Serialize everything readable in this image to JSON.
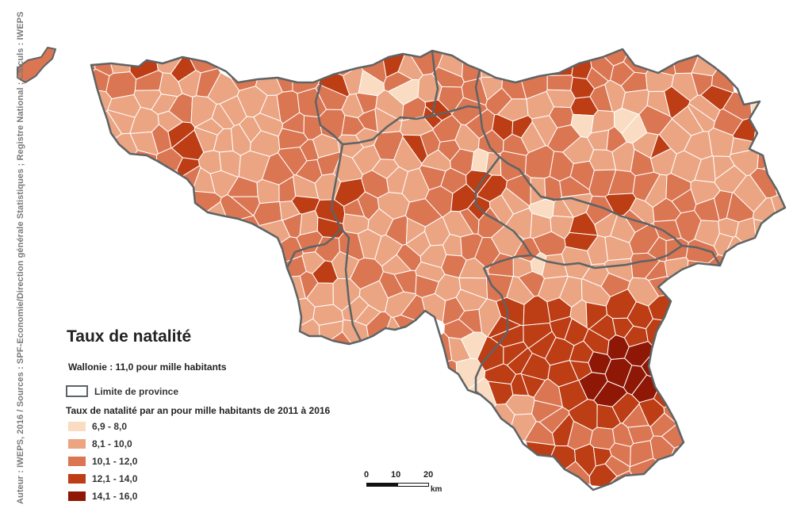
{
  "credit_vertical": "Auteur : IWEPS, 2016 / Sources : SPF-Economie/Direction générale Statistiques ; Registre National ; Calculs : IWEPS",
  "legend": {
    "title": "Taux de natalité",
    "region_value": "Wallonie : 11,0 pour mille habitants",
    "boundary_label": "Limite de province",
    "subtitle": "Taux de natalité par an pour mille habitants de 2011 à 2016",
    "classes": [
      {
        "label": "6,9 - 8,0",
        "color": "#f9dcc1"
      },
      {
        "label": "8,1 - 10,0",
        "color": "#eba583"
      },
      {
        "label": "10,1 - 12,0",
        "color": "#db7653"
      },
      {
        "label": "12,1 - 14,0",
        "color": "#bd3d15"
      },
      {
        "label": "14,1 - 16,0",
        "color": "#8e1805"
      }
    ]
  },
  "scale": {
    "ticks": [
      "0",
      "10",
      "20"
    ],
    "unit": "km"
  },
  "colors": {
    "province_boundary": "#5d6466",
    "commune_border": "#ffffff"
  }
}
